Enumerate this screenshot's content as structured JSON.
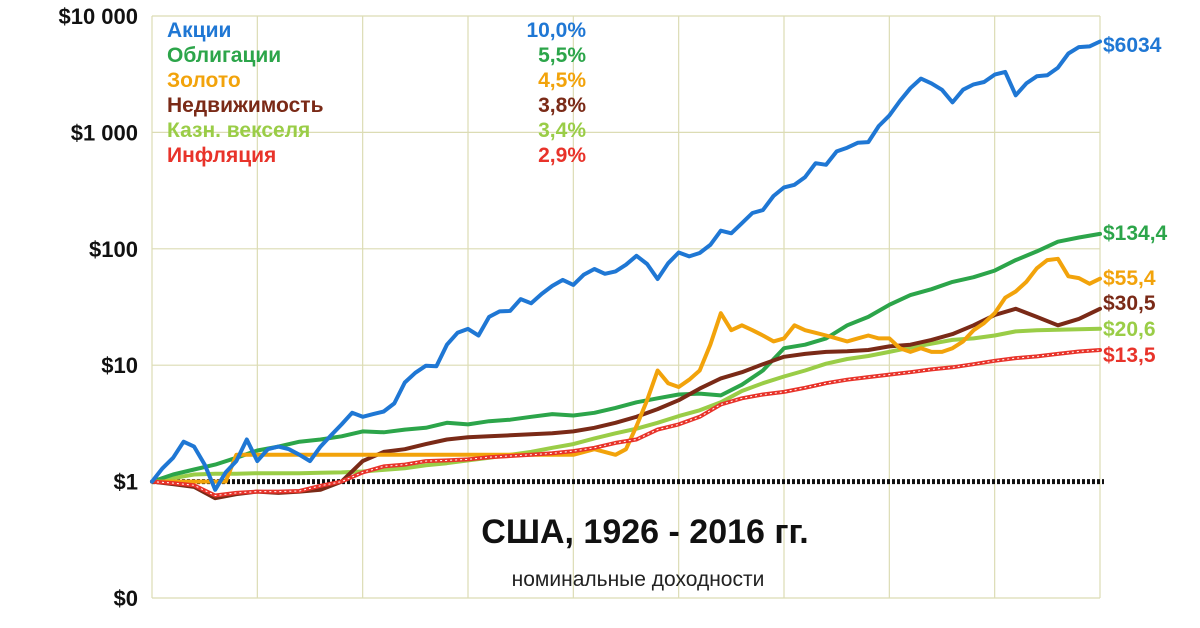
{
  "chart_data": {
    "type": "line",
    "title": "США,  1926 - 2016 гг.",
    "subtitle": "номинальные доходности",
    "y_scale": "log",
    "ylim": [
      0.1,
      10000
    ],
    "xlim": [
      1926,
      2016
    ],
    "grid": true,
    "legend_position": "top-left",
    "y_ticks": [
      {
        "value": 10000,
        "label": "$10 000"
      },
      {
        "value": 1000,
        "label": "$1 000"
      },
      {
        "value": 100,
        "label": "$100"
      },
      {
        "value": 10,
        "label": "$10"
      },
      {
        "value": 1,
        "label": "$1"
      },
      {
        "value": 0.1,
        "label": "$0"
      }
    ],
    "series": [
      {
        "name": "Акции",
        "rate": "10,0%",
        "end_label": "$6034",
        "color": "#1f77d4",
        "x": [
          1926,
          1927,
          1928,
          1929,
          1930,
          1931,
          1932,
          1933,
          1934,
          1935,
          1936,
          1937,
          1938,
          1939,
          1940,
          1941,
          1942,
          1943,
          1944,
          1945,
          1946,
          1947,
          1948,
          1949,
          1950,
          1951,
          1952,
          1953,
          1954,
          1955,
          1956,
          1957,
          1958,
          1959,
          1960,
          1961,
          1962,
          1963,
          1964,
          1965,
          1966,
          1967,
          1968,
          1969,
          1970,
          1971,
          1972,
          1973,
          1974,
          1975,
          1976,
          1977,
          1978,
          1979,
          1980,
          1981,
          1982,
          1983,
          1984,
          1985,
          1986,
          1987,
          1988,
          1989,
          1990,
          1991,
          1992,
          1993,
          1994,
          1995,
          1996,
          1997,
          1998,
          1999,
          2000,
          2001,
          2002,
          2003,
          2004,
          2005,
          2006,
          2007,
          2008,
          2009,
          2010,
          2011,
          2012,
          2013,
          2014,
          2015,
          2016
        ],
        "y": [
          1.0,
          1.3,
          1.6,
          2.2,
          2.0,
          1.4,
          0.85,
          1.2,
          1.5,
          2.3,
          1.5,
          1.9,
          2.0,
          1.9,
          1.7,
          1.5,
          2.0,
          2.5,
          3.1,
          3.9,
          3.6,
          3.8,
          4.0,
          4.7,
          7.1,
          8.6,
          9.9,
          9.8,
          15.0,
          19.0,
          20.5,
          18.0,
          26.0,
          29.0,
          29.3,
          37.0,
          34.0,
          41.0,
          48.0,
          54.0,
          49.0,
          60.0,
          67.0,
          61.0,
          64.0,
          73.0,
          87.0,
          74.0,
          55.0,
          75.0,
          93.0,
          86.0,
          92.0,
          108.0,
          143.0,
          136.0,
          166.0,
          203.0,
          215.0,
          284.0,
          337.0,
          355.0,
          413.0,
          544.0,
          527.0,
          687.0,
          739.0,
          814.0,
          825.0,
          1134.0,
          1395.0,
          1860.0,
          2395.0,
          2899.0,
          2636.0,
          2323.0,
          1810.0,
          2329.0,
          2583.0,
          2710.0,
          3138.0,
          3310.0,
          2085.0,
          2637.0,
          3034.0,
          3098.0,
          3594.0,
          4758.0,
          5408.0,
          5483.0,
          6034.0
        ]
      },
      {
        "name": "Облигации",
        "rate": "5,5%",
        "end_label": "$134,4",
        "color": "#2ca54a",
        "x": [
          1926,
          1928,
          1930,
          1932,
          1934,
          1936,
          1938,
          1940,
          1942,
          1944,
          1946,
          1948,
          1950,
          1952,
          1954,
          1956,
          1958,
          1960,
          1962,
          1964,
          1966,
          1968,
          1970,
          1972,
          1974,
          1976,
          1978,
          1980,
          1982,
          1984,
          1986,
          1988,
          1990,
          1992,
          1994,
          1996,
          1998,
          2000,
          2002,
          2004,
          2006,
          2008,
          2010,
          2012,
          2014,
          2016
        ],
        "y": [
          1.0,
          1.15,
          1.27,
          1.4,
          1.6,
          1.85,
          2.0,
          2.2,
          2.3,
          2.45,
          2.7,
          2.65,
          2.8,
          2.9,
          3.2,
          3.1,
          3.3,
          3.4,
          3.6,
          3.8,
          3.7,
          3.9,
          4.3,
          4.8,
          5.2,
          5.6,
          5.7,
          5.5,
          6.8,
          9.0,
          14.0,
          15.0,
          17.0,
          22.0,
          26.0,
          33.0,
          40.0,
          45.0,
          52.0,
          57.0,
          65.0,
          80.0,
          95.0,
          115.0,
          125.0,
          134.4
        ]
      },
      {
        "name": "Золото",
        "rate": "4,5%",
        "end_label": "$55,4",
        "color": "#f2a30b",
        "x": [
          1926,
          1930,
          1933,
          1934,
          1938,
          1942,
          1946,
          1950,
          1955,
          1960,
          1965,
          1966,
          1968,
          1970,
          1971,
          1972,
          1973,
          1974,
          1975,
          1976,
          1977,
          1978,
          1979,
          1980,
          1981,
          1982,
          1983,
          1984,
          1985,
          1986,
          1987,
          1988,
          1989,
          1990,
          1991,
          1992,
          1993,
          1994,
          1995,
          1996,
          1997,
          1998,
          1999,
          2000,
          2001,
          2002,
          2003,
          2004,
          2005,
          2006,
          2007,
          2008,
          2009,
          2010,
          2011,
          2012,
          2013,
          2014,
          2015,
          2016
        ],
        "y": [
          1.0,
          1.0,
          1.0,
          1.7,
          1.7,
          1.7,
          1.7,
          1.7,
          1.7,
          1.7,
          1.7,
          1.7,
          1.9,
          1.7,
          1.9,
          3.0,
          5.0,
          9.0,
          7.0,
          6.5,
          7.5,
          9.0,
          15.0,
          28.0,
          20.0,
          22.0,
          20.0,
          18.0,
          16.0,
          17.0,
          22.0,
          20.0,
          19.0,
          18.0,
          17.0,
          16.0,
          17.0,
          18.0,
          17.0,
          17.0,
          14.0,
          13.0,
          14.0,
          13.0,
          13.0,
          14.0,
          16.0,
          20.0,
          23.0,
          28.0,
          38.0,
          43.0,
          52.0,
          68.0,
          80.0,
          82.0,
          58.0,
          56.0,
          50.0,
          55.4
        ]
      },
      {
        "name": "Недвижимость",
        "rate": "3,8%",
        "end_label": "$30,5",
        "color": "#7a2a17",
        "x": [
          1926,
          1928,
          1930,
          1932,
          1934,
          1936,
          1938,
          1940,
          1942,
          1944,
          1946,
          1948,
          1950,
          1952,
          1954,
          1956,
          1958,
          1960,
          1962,
          1964,
          1966,
          1968,
          1970,
          1972,
          1974,
          1976,
          1978,
          1980,
          1982,
          1984,
          1986,
          1988,
          1990,
          1992,
          1994,
          1996,
          1998,
          2000,
          2002,
          2004,
          2006,
          2008,
          2010,
          2012,
          2014,
          2016
        ],
        "y": [
          1.0,
          0.95,
          0.9,
          0.72,
          0.78,
          0.82,
          0.8,
          0.82,
          0.85,
          1.0,
          1.5,
          1.8,
          1.9,
          2.1,
          2.3,
          2.4,
          2.45,
          2.5,
          2.55,
          2.6,
          2.7,
          2.9,
          3.2,
          3.6,
          4.2,
          5.0,
          6.3,
          7.7,
          8.7,
          10.2,
          11.8,
          12.5,
          13.0,
          13.2,
          13.5,
          14.5,
          15.0,
          16.5,
          18.5,
          22.0,
          27.0,
          30.5,
          26.0,
          22.0,
          25.0,
          30.5
        ]
      },
      {
        "name": "Казн. векселя",
        "rate": "3,4%",
        "end_label": "$20,6",
        "color": "#9acd47",
        "x": [
          1926,
          1928,
          1930,
          1932,
          1934,
          1936,
          1938,
          1940,
          1942,
          1944,
          1946,
          1948,
          1950,
          1952,
          1954,
          1956,
          1958,
          1960,
          1962,
          1964,
          1966,
          1968,
          1970,
          1972,
          1974,
          1976,
          1978,
          1980,
          1982,
          1984,
          1986,
          1988,
          1990,
          1992,
          1994,
          1996,
          1998,
          2000,
          2002,
          2004,
          2006,
          2008,
          2010,
          2012,
          2014,
          2016
        ],
        "y": [
          1.0,
          1.07,
          1.15,
          1.17,
          1.17,
          1.18,
          1.18,
          1.18,
          1.19,
          1.2,
          1.22,
          1.26,
          1.3,
          1.38,
          1.44,
          1.52,
          1.6,
          1.7,
          1.8,
          1.95,
          2.1,
          2.35,
          2.6,
          2.85,
          3.2,
          3.65,
          4.1,
          4.8,
          6.0,
          7.0,
          8.0,
          9.0,
          10.3,
          11.3,
          12.0,
          13.0,
          14.2,
          15.3,
          16.5,
          17.0,
          18.0,
          19.5,
          20.0,
          20.2,
          20.4,
          20.6
        ]
      },
      {
        "name": "Инфляция",
        "rate": "2,9%",
        "end_label": "$13,5",
        "color": "#e8332a",
        "x": [
          1926,
          1928,
          1930,
          1932,
          1934,
          1936,
          1938,
          1940,
          1942,
          1944,
          1946,
          1948,
          1950,
          1952,
          1954,
          1956,
          1958,
          1960,
          1962,
          1964,
          1966,
          1968,
          1970,
          1972,
          1974,
          1976,
          1978,
          1980,
          1982,
          1984,
          1986,
          1988,
          1990,
          1992,
          1994,
          1996,
          1998,
          2000,
          2002,
          2004,
          2006,
          2008,
          2010,
          2012,
          2014,
          2016
        ],
        "y": [
          1.0,
          0.97,
          0.93,
          0.76,
          0.8,
          0.82,
          0.82,
          0.83,
          0.92,
          1.0,
          1.2,
          1.35,
          1.4,
          1.5,
          1.52,
          1.55,
          1.62,
          1.66,
          1.7,
          1.75,
          1.83,
          1.95,
          2.15,
          2.3,
          2.8,
          3.1,
          3.6,
          4.6,
          5.2,
          5.6,
          5.9,
          6.4,
          7.0,
          7.5,
          7.9,
          8.3,
          8.7,
          9.2,
          9.6,
          10.2,
          10.9,
          11.5,
          11.9,
          12.5,
          13.1,
          13.5
        ]
      }
    ]
  }
}
